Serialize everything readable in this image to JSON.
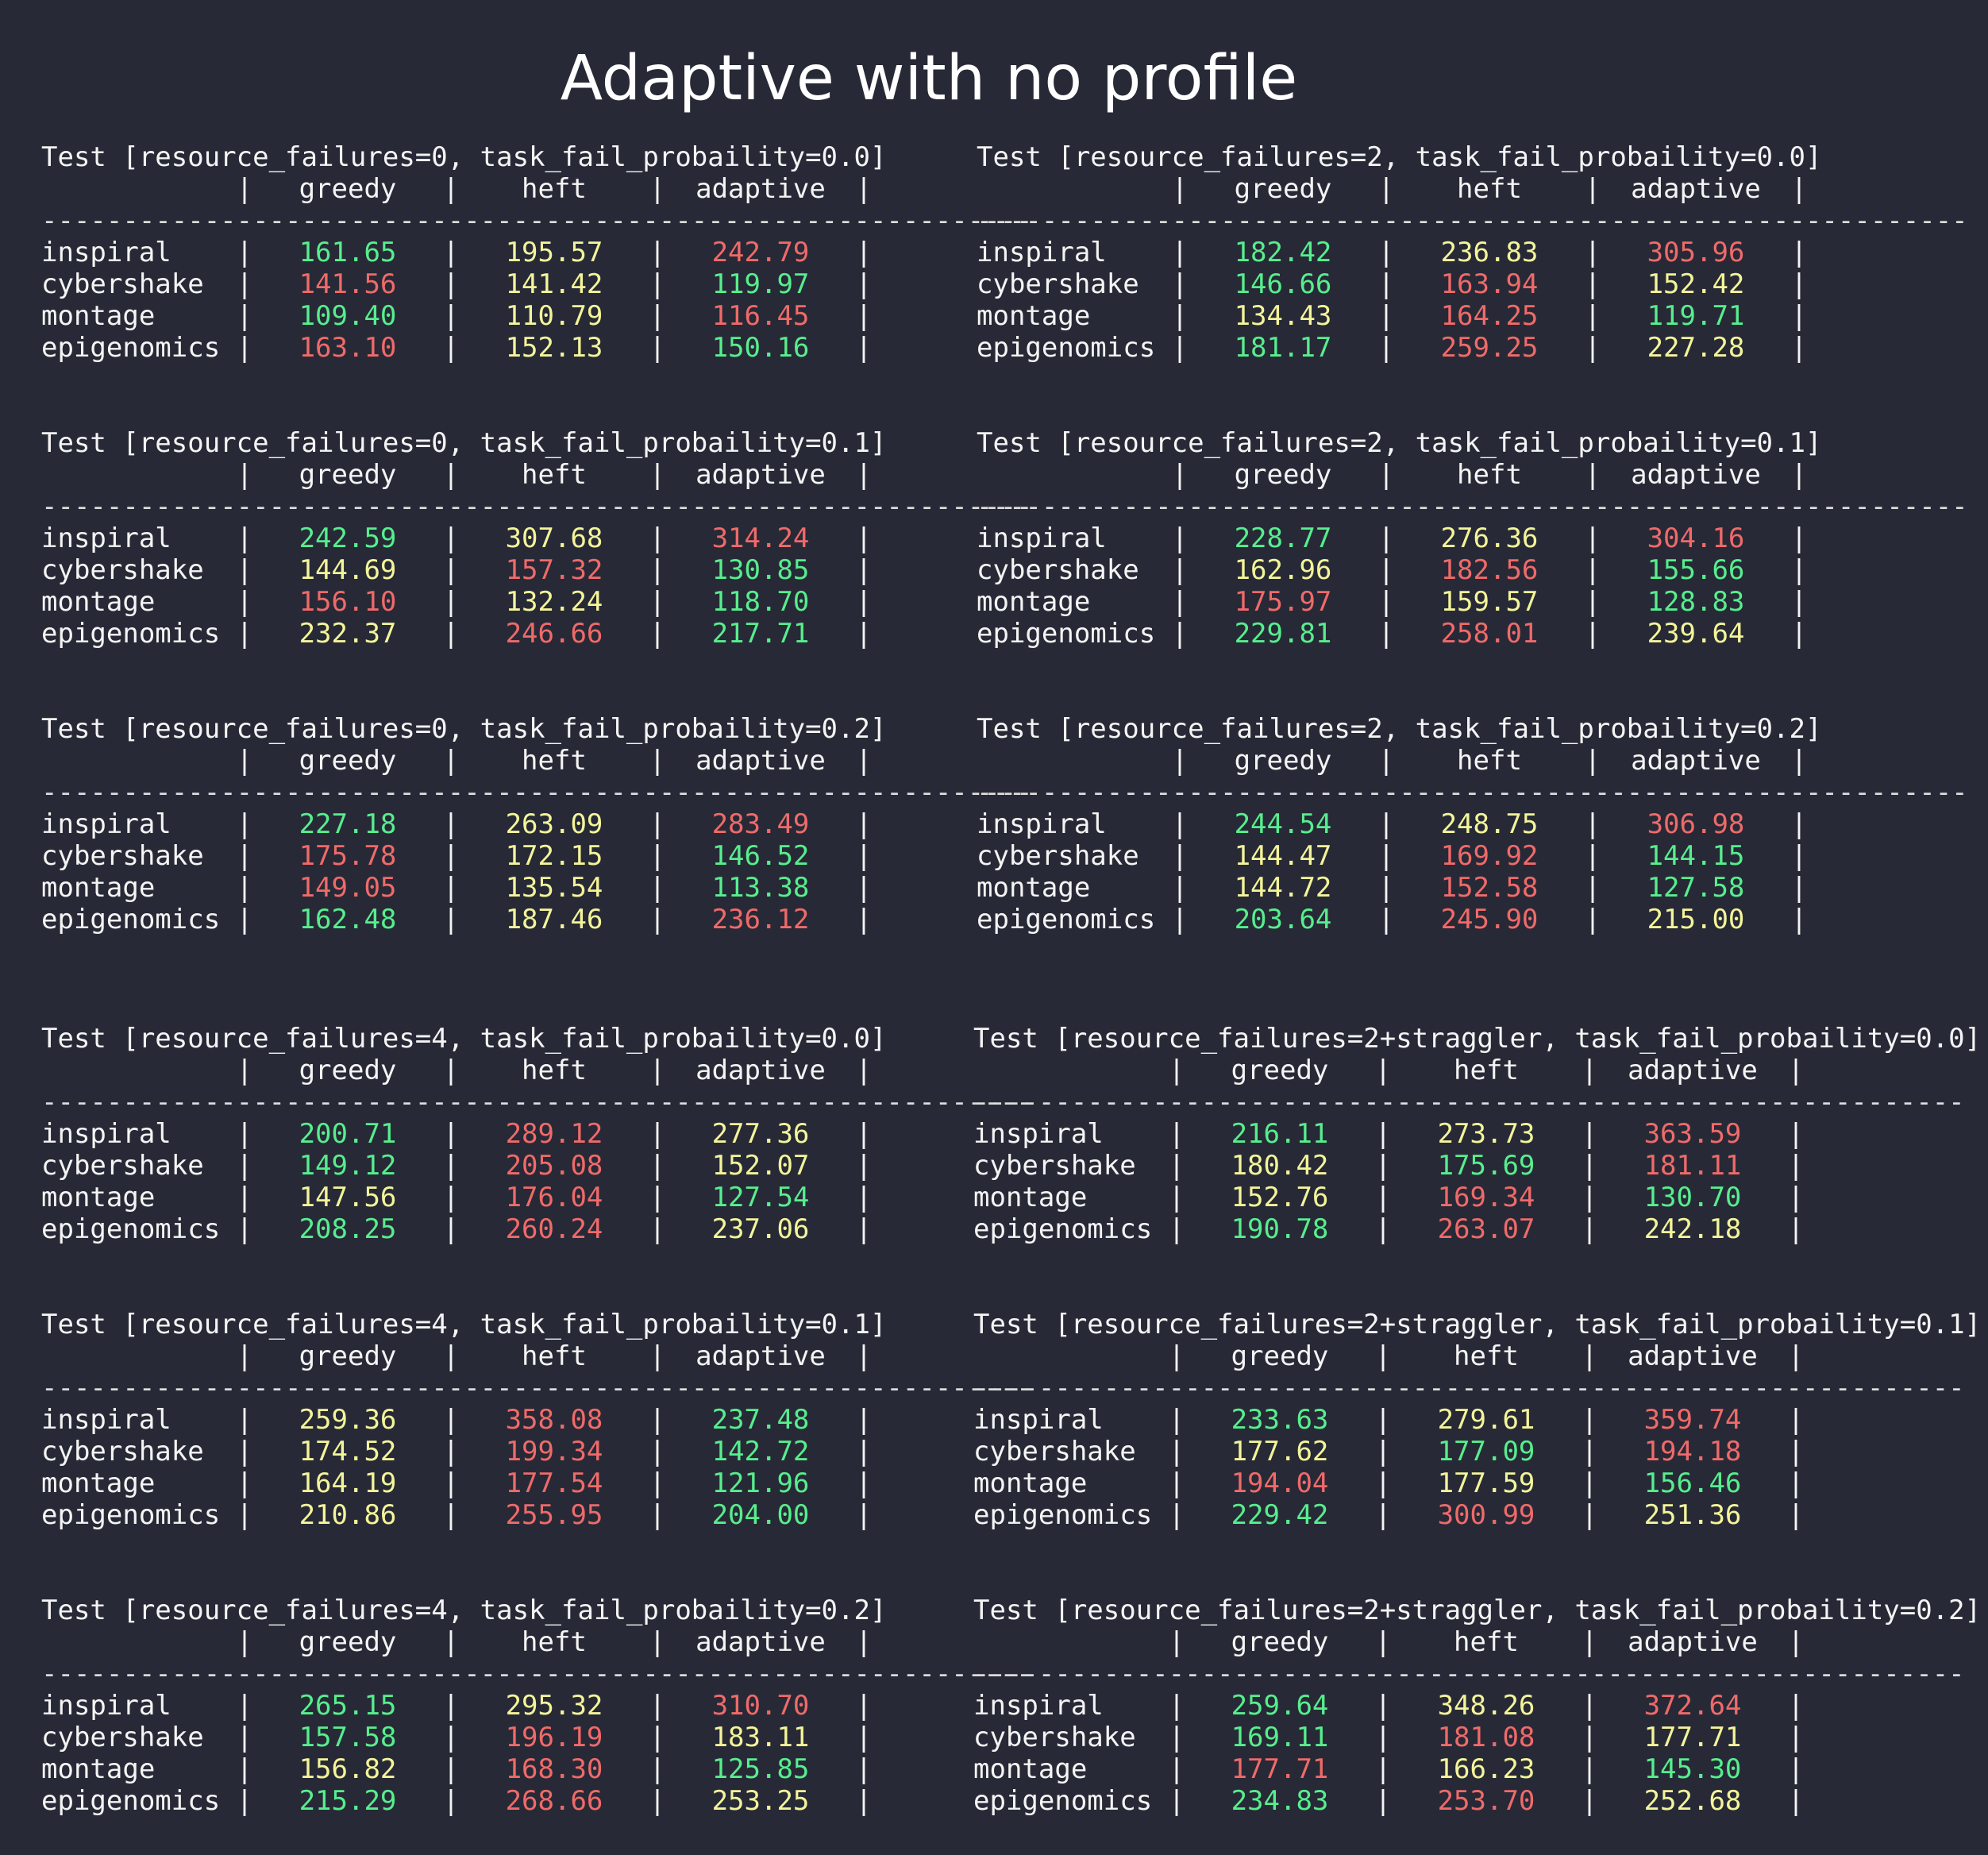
{
  "title": "Adaptive with no profile",
  "columns": [
    "greedy",
    "heft",
    "adaptive"
  ],
  "colors": {
    "green": "#57ee8e",
    "red": "#f06a6a",
    "yellow": "#f4f49a"
  },
  "separator": "-------------------------------------------------------------",
  "tables": [
    {
      "title": "Test [resource_failures=0, task_fail_probaility=0.0]",
      "rows": [
        {
          "name": "inspiral",
          "values": [
            "161.65",
            "195.57",
            "242.79"
          ],
          "colors": [
            "green",
            "yellow",
            "red"
          ]
        },
        {
          "name": "cybershake",
          "values": [
            "141.56",
            "141.42",
            "119.97"
          ],
          "colors": [
            "red",
            "yellow",
            "green"
          ]
        },
        {
          "name": "montage",
          "values": [
            "109.40",
            "110.79",
            "116.45"
          ],
          "colors": [
            "green",
            "yellow",
            "red"
          ]
        },
        {
          "name": "epigenomics",
          "values": [
            "163.10",
            "152.13",
            "150.16"
          ],
          "colors": [
            "red",
            "yellow",
            "green"
          ]
        }
      ]
    },
    {
      "title": "Test [resource_failures=2, task_fail_probaility=0.0]",
      "rows": [
        {
          "name": "inspiral",
          "values": [
            "182.42",
            "236.83",
            "305.96"
          ],
          "colors": [
            "green",
            "yellow",
            "red"
          ]
        },
        {
          "name": "cybershake",
          "values": [
            "146.66",
            "163.94",
            "152.42"
          ],
          "colors": [
            "green",
            "red",
            "yellow"
          ]
        },
        {
          "name": "montage",
          "values": [
            "134.43",
            "164.25",
            "119.71"
          ],
          "colors": [
            "yellow",
            "red",
            "green"
          ]
        },
        {
          "name": "epigenomics",
          "values": [
            "181.17",
            "259.25",
            "227.28"
          ],
          "colors": [
            "green",
            "red",
            "yellow"
          ]
        }
      ]
    },
    {
      "title": "Test [resource_failures=0, task_fail_probaility=0.1]",
      "rows": [
        {
          "name": "inspiral",
          "values": [
            "242.59",
            "307.68",
            "314.24"
          ],
          "colors": [
            "green",
            "yellow",
            "red"
          ]
        },
        {
          "name": "cybershake",
          "values": [
            "144.69",
            "157.32",
            "130.85"
          ],
          "colors": [
            "yellow",
            "red",
            "green"
          ]
        },
        {
          "name": "montage",
          "values": [
            "156.10",
            "132.24",
            "118.70"
          ],
          "colors": [
            "red",
            "yellow",
            "green"
          ]
        },
        {
          "name": "epigenomics",
          "values": [
            "232.37",
            "246.66",
            "217.71"
          ],
          "colors": [
            "yellow",
            "red",
            "green"
          ]
        }
      ]
    },
    {
      "title": "Test [resource_failures=2, task_fail_probaility=0.1]",
      "rows": [
        {
          "name": "inspiral",
          "values": [
            "228.77",
            "276.36",
            "304.16"
          ],
          "colors": [
            "green",
            "yellow",
            "red"
          ]
        },
        {
          "name": "cybershake",
          "values": [
            "162.96",
            "182.56",
            "155.66"
          ],
          "colors": [
            "yellow",
            "red",
            "green"
          ]
        },
        {
          "name": "montage",
          "values": [
            "175.97",
            "159.57",
            "128.83"
          ],
          "colors": [
            "red",
            "yellow",
            "green"
          ]
        },
        {
          "name": "epigenomics",
          "values": [
            "229.81",
            "258.01",
            "239.64"
          ],
          "colors": [
            "green",
            "red",
            "yellow"
          ]
        }
      ]
    },
    {
      "title": "Test [resource_failures=0, task_fail_probaility=0.2]",
      "rows": [
        {
          "name": "inspiral",
          "values": [
            "227.18",
            "263.09",
            "283.49"
          ],
          "colors": [
            "green",
            "yellow",
            "red"
          ]
        },
        {
          "name": "cybershake",
          "values": [
            "175.78",
            "172.15",
            "146.52"
          ],
          "colors": [
            "red",
            "yellow",
            "green"
          ]
        },
        {
          "name": "montage",
          "values": [
            "149.05",
            "135.54",
            "113.38"
          ],
          "colors": [
            "red",
            "yellow",
            "green"
          ]
        },
        {
          "name": "epigenomics",
          "values": [
            "162.48",
            "187.46",
            "236.12"
          ],
          "colors": [
            "green",
            "yellow",
            "red"
          ]
        }
      ]
    },
    {
      "title": "Test [resource_failures=2, task_fail_probaility=0.2]",
      "rows": [
        {
          "name": "inspiral",
          "values": [
            "244.54",
            "248.75",
            "306.98"
          ],
          "colors": [
            "green",
            "yellow",
            "red"
          ]
        },
        {
          "name": "cybershake",
          "values": [
            "144.47",
            "169.92",
            "144.15"
          ],
          "colors": [
            "yellow",
            "red",
            "green"
          ]
        },
        {
          "name": "montage",
          "values": [
            "144.72",
            "152.58",
            "127.58"
          ],
          "colors": [
            "yellow",
            "red",
            "green"
          ]
        },
        {
          "name": "epigenomics",
          "values": [
            "203.64",
            "245.90",
            "215.00"
          ],
          "colors": [
            "green",
            "red",
            "yellow"
          ]
        }
      ]
    },
    {
      "title": "Test [resource_failures=4, task_fail_probaility=0.0]",
      "rows": [
        {
          "name": "inspiral",
          "values": [
            "200.71",
            "289.12",
            "277.36"
          ],
          "colors": [
            "green",
            "red",
            "yellow"
          ]
        },
        {
          "name": "cybershake",
          "values": [
            "149.12",
            "205.08",
            "152.07"
          ],
          "colors": [
            "green",
            "red",
            "yellow"
          ]
        },
        {
          "name": "montage",
          "values": [
            "147.56",
            "176.04",
            "127.54"
          ],
          "colors": [
            "yellow",
            "red",
            "green"
          ]
        },
        {
          "name": "epigenomics",
          "values": [
            "208.25",
            "260.24",
            "237.06"
          ],
          "colors": [
            "green",
            "red",
            "yellow"
          ]
        }
      ]
    },
    {
      "title": "Test [resource_failures=2+straggler, task_fail_probaility=0.0]",
      "rows": [
        {
          "name": "inspiral",
          "values": [
            "216.11",
            "273.73",
            "363.59"
          ],
          "colors": [
            "green",
            "yellow",
            "red"
          ]
        },
        {
          "name": "cybershake",
          "values": [
            "180.42",
            "175.69",
            "181.11"
          ],
          "colors": [
            "yellow",
            "green",
            "red"
          ]
        },
        {
          "name": "montage",
          "values": [
            "152.76",
            "169.34",
            "130.70"
          ],
          "colors": [
            "yellow",
            "red",
            "green"
          ]
        },
        {
          "name": "epigenomics",
          "values": [
            "190.78",
            "263.07",
            "242.18"
          ],
          "colors": [
            "green",
            "red",
            "yellow"
          ]
        }
      ]
    },
    {
      "title": "Test [resource_failures=4, task_fail_probaility=0.1]",
      "rows": [
        {
          "name": "inspiral",
          "values": [
            "259.36",
            "358.08",
            "237.48"
          ],
          "colors": [
            "yellow",
            "red",
            "green"
          ]
        },
        {
          "name": "cybershake",
          "values": [
            "174.52",
            "199.34",
            "142.72"
          ],
          "colors": [
            "yellow",
            "red",
            "green"
          ]
        },
        {
          "name": "montage",
          "values": [
            "164.19",
            "177.54",
            "121.96"
          ],
          "colors": [
            "yellow",
            "red",
            "green"
          ]
        },
        {
          "name": "epigenomics",
          "values": [
            "210.86",
            "255.95",
            "204.00"
          ],
          "colors": [
            "yellow",
            "red",
            "green"
          ]
        }
      ]
    },
    {
      "title": "Test [resource_failures=2+straggler, task_fail_probaility=0.1]",
      "rows": [
        {
          "name": "inspiral",
          "values": [
            "233.63",
            "279.61",
            "359.74"
          ],
          "colors": [
            "green",
            "yellow",
            "red"
          ]
        },
        {
          "name": "cybershake",
          "values": [
            "177.62",
            "177.09",
            "194.18"
          ],
          "colors": [
            "yellow",
            "green",
            "red"
          ]
        },
        {
          "name": "montage",
          "values": [
            "194.04",
            "177.59",
            "156.46"
          ],
          "colors": [
            "red",
            "yellow",
            "green"
          ]
        },
        {
          "name": "epigenomics",
          "values": [
            "229.42",
            "300.99",
            "251.36"
          ],
          "colors": [
            "green",
            "red",
            "yellow"
          ]
        }
      ]
    },
    {
      "title": "Test [resource_failures=4, task_fail_probaility=0.2]",
      "rows": [
        {
          "name": "inspiral",
          "values": [
            "265.15",
            "295.32",
            "310.70"
          ],
          "colors": [
            "green",
            "yellow",
            "red"
          ]
        },
        {
          "name": "cybershake",
          "values": [
            "157.58",
            "196.19",
            "183.11"
          ],
          "colors": [
            "green",
            "red",
            "yellow"
          ]
        },
        {
          "name": "montage",
          "values": [
            "156.82",
            "168.30",
            "125.85"
          ],
          "colors": [
            "yellow",
            "red",
            "green"
          ]
        },
        {
          "name": "epigenomics",
          "values": [
            "215.29",
            "268.66",
            "253.25"
          ],
          "colors": [
            "green",
            "red",
            "yellow"
          ]
        }
      ]
    },
    {
      "title": "Test [resource_failures=2+straggler, task_fail_probaility=0.2]",
      "rows": [
        {
          "name": "inspiral",
          "values": [
            "259.64",
            "348.26",
            "372.64"
          ],
          "colors": [
            "green",
            "yellow",
            "red"
          ]
        },
        {
          "name": "cybershake",
          "values": [
            "169.11",
            "181.08",
            "177.71"
          ],
          "colors": [
            "green",
            "red",
            "yellow"
          ]
        },
        {
          "name": "montage",
          "values": [
            "177.71",
            "166.23",
            "145.30"
          ],
          "colors": [
            "red",
            "yellow",
            "green"
          ]
        },
        {
          "name": "epigenomics",
          "values": [
            "234.83",
            "253.70",
            "252.68"
          ],
          "colors": [
            "green",
            "red",
            "yellow"
          ]
        }
      ]
    }
  ]
}
